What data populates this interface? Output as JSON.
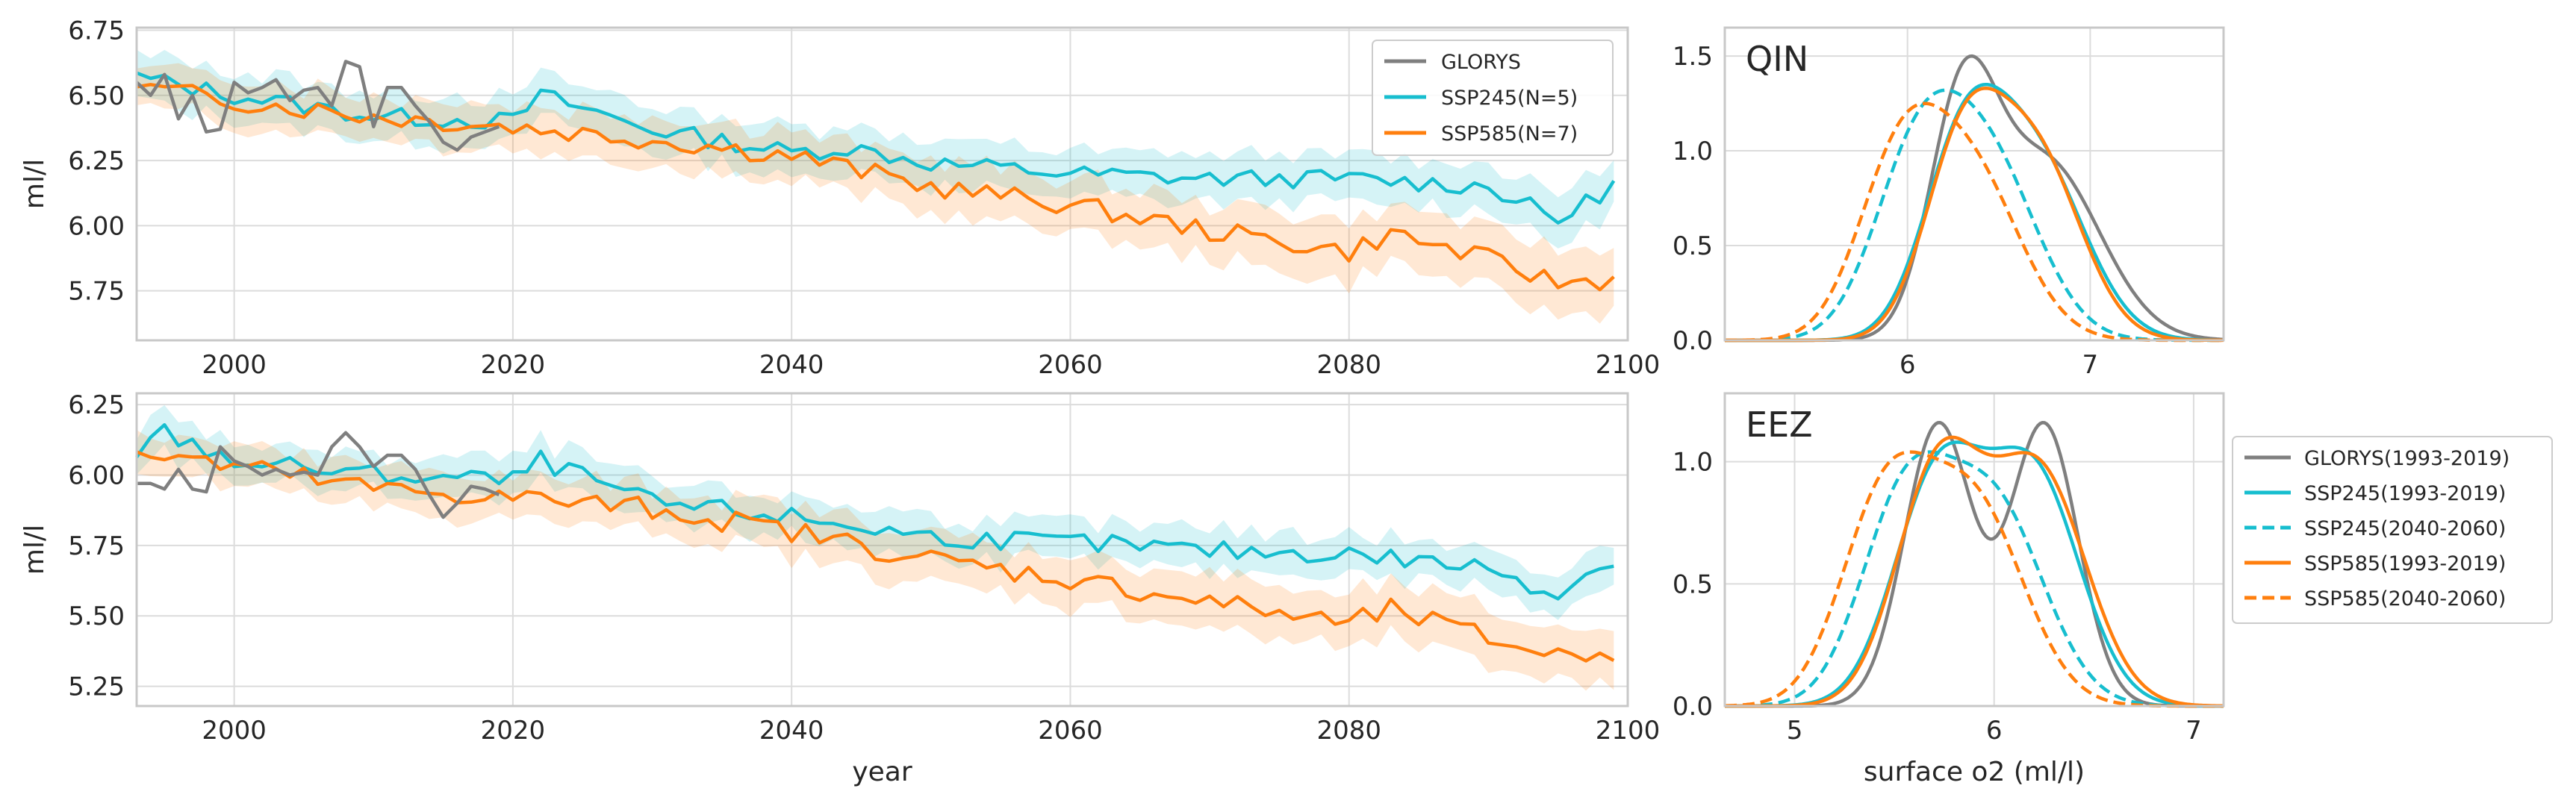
{
  "colors": {
    "glorys": "#7f7f7f",
    "ssp245": "#17becf",
    "ssp585": "#ff7f0e",
    "grid": "#dcdcdc",
    "frame": "#c8c8c8",
    "text": "#262626"
  },
  "chart_data": [
    {
      "id": "ts_qin",
      "type": "line",
      "ylabel": "ml/l",
      "xlabel": "",
      "xlim": [
        1993,
        2100
      ],
      "ylim": [
        5.56,
        6.76
      ],
      "xticks": [
        2000,
        2020,
        2040,
        2060,
        2080,
        2100
      ],
      "yticks": [
        5.75,
        6.0,
        6.25,
        6.5,
        6.75
      ],
      "ytick_labels": [
        "5.75",
        "6.00",
        "6.25",
        "6.50",
        "6.75"
      ],
      "grid": true,
      "legend": {
        "placement": "top-right",
        "entries": [
          {
            "label": "GLORYS",
            "color": "#7f7f7f",
            "style": "solid"
          },
          {
            "label": "SSP245(N=5)",
            "color": "#17becf",
            "style": "solid"
          },
          {
            "label": "SSP585(N=7)",
            "color": "#ff7f0e",
            "style": "solid"
          }
        ]
      },
      "anchors": {
        "glorys": [
          [
            1993,
            6.55
          ],
          [
            1994,
            6.5
          ],
          [
            1995,
            6.58
          ],
          [
            1996,
            6.41
          ],
          [
            1997,
            6.5
          ],
          [
            1998,
            6.36
          ],
          [
            1999,
            6.37
          ],
          [
            2000,
            6.55
          ],
          [
            2001,
            6.51
          ],
          [
            2002,
            6.53
          ],
          [
            2003,
            6.56
          ],
          [
            2004,
            6.48
          ],
          [
            2005,
            6.52
          ],
          [
            2006,
            6.53
          ],
          [
            2007,
            6.46
          ],
          [
            2008,
            6.63
          ],
          [
            2009,
            6.61
          ],
          [
            2010,
            6.38
          ],
          [
            2011,
            6.53
          ],
          [
            2012,
            6.53
          ],
          [
            2013,
            6.46
          ],
          [
            2014,
            6.4
          ],
          [
            2015,
            6.32
          ],
          [
            2016,
            6.29
          ],
          [
            2017,
            6.34
          ],
          [
            2018,
            6.36
          ],
          [
            2019,
            6.38
          ]
        ],
        "ssp245": [
          [
            1993,
            6.57
          ],
          [
            2000,
            6.5
          ],
          [
            2010,
            6.42
          ],
          [
            2020,
            6.4
          ],
          [
            2022,
            6.5
          ],
          [
            2030,
            6.37
          ],
          [
            2040,
            6.28
          ],
          [
            2044,
            6.3
          ],
          [
            2050,
            6.24
          ],
          [
            2060,
            6.2
          ],
          [
            2070,
            6.18
          ],
          [
            2080,
            6.18
          ],
          [
            2090,
            6.15
          ],
          [
            2095,
            6.02
          ],
          [
            2100,
            6.19
          ]
        ],
        "ssp585": [
          [
            1993,
            6.53
          ],
          [
            2000,
            6.48
          ],
          [
            2010,
            6.42
          ],
          [
            2020,
            6.38
          ],
          [
            2030,
            6.33
          ],
          [
            2040,
            6.27
          ],
          [
            2050,
            6.15
          ],
          [
            2060,
            6.08
          ],
          [
            2070,
            5.98
          ],
          [
            2080,
            5.9
          ],
          [
            2083,
            5.97
          ],
          [
            2090,
            5.87
          ],
          [
            2095,
            5.78
          ],
          [
            2100,
            5.8
          ]
        ]
      },
      "band": {
        "ssp245_halfwidth": 0.09,
        "ssp585_halfwidth_start": 0.08,
        "ssp585_halfwidth_end": 0.12
      }
    },
    {
      "id": "ts_eez",
      "type": "line",
      "ylabel": "ml/l",
      "xlabel": "year",
      "xlim": [
        1993,
        2100
      ],
      "ylim": [
        5.18,
        6.29
      ],
      "xticks": [
        2000,
        2020,
        2040,
        2060,
        2080,
        2100
      ],
      "yticks": [
        5.25,
        5.5,
        5.75,
        6.0,
        6.25
      ],
      "ytick_labels": [
        "5.25",
        "5.50",
        "5.75",
        "6.00",
        "6.25"
      ],
      "grid": true,
      "anchors": {
        "glorys": [
          [
            1993,
            5.97
          ],
          [
            1994,
            5.97
          ],
          [
            1995,
            5.95
          ],
          [
            1996,
            6.02
          ],
          [
            1997,
            5.95
          ],
          [
            1998,
            5.94
          ],
          [
            1999,
            6.1
          ],
          [
            2000,
            6.05
          ],
          [
            2001,
            6.03
          ],
          [
            2002,
            6.0
          ],
          [
            2003,
            6.02
          ],
          [
            2004,
            6.0
          ],
          [
            2005,
            6.01
          ],
          [
            2006,
            6.0
          ],
          [
            2007,
            6.1
          ],
          [
            2008,
            6.15
          ],
          [
            2009,
            6.1
          ],
          [
            2010,
            6.03
          ],
          [
            2011,
            6.07
          ],
          [
            2012,
            6.07
          ],
          [
            2013,
            6.02
          ],
          [
            2014,
            5.93
          ],
          [
            2015,
            5.85
          ],
          [
            2016,
            5.9
          ],
          [
            2017,
            5.96
          ],
          [
            2018,
            5.95
          ],
          [
            2019,
            5.93
          ]
        ],
        "ssp245": [
          [
            1993,
            6.08
          ],
          [
            1995,
            6.15
          ],
          [
            2000,
            6.05
          ],
          [
            2010,
            6.0
          ],
          [
            2020,
            5.98
          ],
          [
            2022,
            6.05
          ],
          [
            2030,
            5.9
          ],
          [
            2040,
            5.85
          ],
          [
            2050,
            5.78
          ],
          [
            2060,
            5.76
          ],
          [
            2070,
            5.73
          ],
          [
            2080,
            5.72
          ],
          [
            2090,
            5.67
          ],
          [
            2095,
            5.58
          ],
          [
            2100,
            5.74
          ]
        ],
        "ssp585": [
          [
            1993,
            6.08
          ],
          [
            2000,
            6.03
          ],
          [
            2010,
            5.95
          ],
          [
            2020,
            5.92
          ],
          [
            2030,
            5.88
          ],
          [
            2040,
            5.8
          ],
          [
            2050,
            5.7
          ],
          [
            2060,
            5.63
          ],
          [
            2070,
            5.55
          ],
          [
            2080,
            5.47
          ],
          [
            2083,
            5.52
          ],
          [
            2090,
            5.42
          ],
          [
            2095,
            5.36
          ],
          [
            2100,
            5.38
          ]
        ]
      },
      "band": {
        "ssp245_halfwidth": 0.07,
        "ssp585_halfwidth_start": 0.07,
        "ssp585_halfwidth_end": 0.1
      }
    },
    {
      "id": "kde_qin",
      "type": "line",
      "title": "QIN",
      "xlabel": "",
      "ylabel": "",
      "xlim": [
        5.0,
        7.73
      ],
      "ylim": [
        0,
        1.65
      ],
      "xticks": [
        6,
        7
      ],
      "yticks": [
        0.0,
        0.5,
        1.0,
        1.5
      ],
      "ytick_labels": [
        "0.0",
        "0.5",
        "1.0",
        "1.5"
      ],
      "grid": true,
      "series": [
        {
          "name": "GLORYS(1993-2019)",
          "color": "#7f7f7f",
          "dash": "solid",
          "components": [
            [
              0.55,
              6.3,
              0.18
            ],
            [
              0.45,
              6.75,
              0.3
            ]
          ],
          "peak": 1.5
        },
        {
          "name": "SSP245(1993-2019)",
          "color": "#17becf",
          "dash": "solid",
          "components": [
            [
              0.5,
              6.3,
              0.22
            ],
            [
              0.5,
              6.7,
              0.27
            ]
          ],
          "peak": 1.35
        },
        {
          "name": "SSP245(2040-2060)",
          "color": "#17becf",
          "dash": "dashed",
          "components": [
            [
              0.5,
              6.05,
              0.24
            ],
            [
              0.5,
              6.45,
              0.27
            ]
          ],
          "peak": 1.32
        },
        {
          "name": "SSP585(1993-2019)",
          "color": "#ff7f0e",
          "dash": "solid",
          "components": [
            [
              0.5,
              6.3,
              0.21
            ],
            [
              0.5,
              6.7,
              0.25
            ]
          ],
          "peak": 1.33
        },
        {
          "name": "SSP585(2040-2060)",
          "color": "#ff7f0e",
          "dash": "dashed",
          "components": [
            [
              0.5,
              5.95,
              0.23
            ],
            [
              0.5,
              6.35,
              0.27
            ]
          ],
          "peak": 1.25
        }
      ]
    },
    {
      "id": "kde_eez",
      "type": "line",
      "title": "EEZ",
      "xlabel": "surface o2  (ml/l)",
      "ylabel": "",
      "xlim": [
        4.65,
        7.15
      ],
      "ylim": [
        0,
        1.28
      ],
      "xticks": [
        5,
        6,
        7
      ],
      "yticks": [
        0.0,
        0.5,
        1.0
      ],
      "ytick_labels": [
        "0.0",
        "0.5",
        "1.0"
      ],
      "grid": true,
      "legend": {
        "placement": "right outside"
      },
      "series": [
        {
          "name": "GLORYS(1993-2019)",
          "color": "#7f7f7f",
          "dash": "solid",
          "components": [
            [
              0.5,
              5.72,
              0.17
            ],
            [
              0.5,
              6.25,
              0.17
            ]
          ],
          "peak": 1.16
        },
        {
          "name": "SSP245(1993-2019)",
          "color": "#17becf",
          "dash": "solid",
          "components": [
            [
              0.5,
              5.72,
              0.22
            ],
            [
              0.5,
              6.2,
              0.23
            ]
          ],
          "peak": 1.08
        },
        {
          "name": "SSP245(2040-2060)",
          "color": "#17becf",
          "dash": "dashed",
          "components": [
            [
              0.5,
              5.55,
              0.22
            ],
            [
              0.5,
              6.0,
              0.25
            ]
          ],
          "peak": 1.04
        },
        {
          "name": "SSP585(1993-2019)",
          "color": "#ff7f0e",
          "dash": "solid",
          "components": [
            [
              0.5,
              5.72,
              0.21
            ],
            [
              0.5,
              6.22,
              0.24
            ]
          ],
          "peak": 1.1
        },
        {
          "name": "SSP585(2040-2060)",
          "color": "#ff7f0e",
          "dash": "dashed",
          "components": [
            [
              0.5,
              5.45,
              0.22
            ],
            [
              0.5,
              5.9,
              0.25
            ]
          ],
          "peak": 1.04
        }
      ]
    }
  ]
}
